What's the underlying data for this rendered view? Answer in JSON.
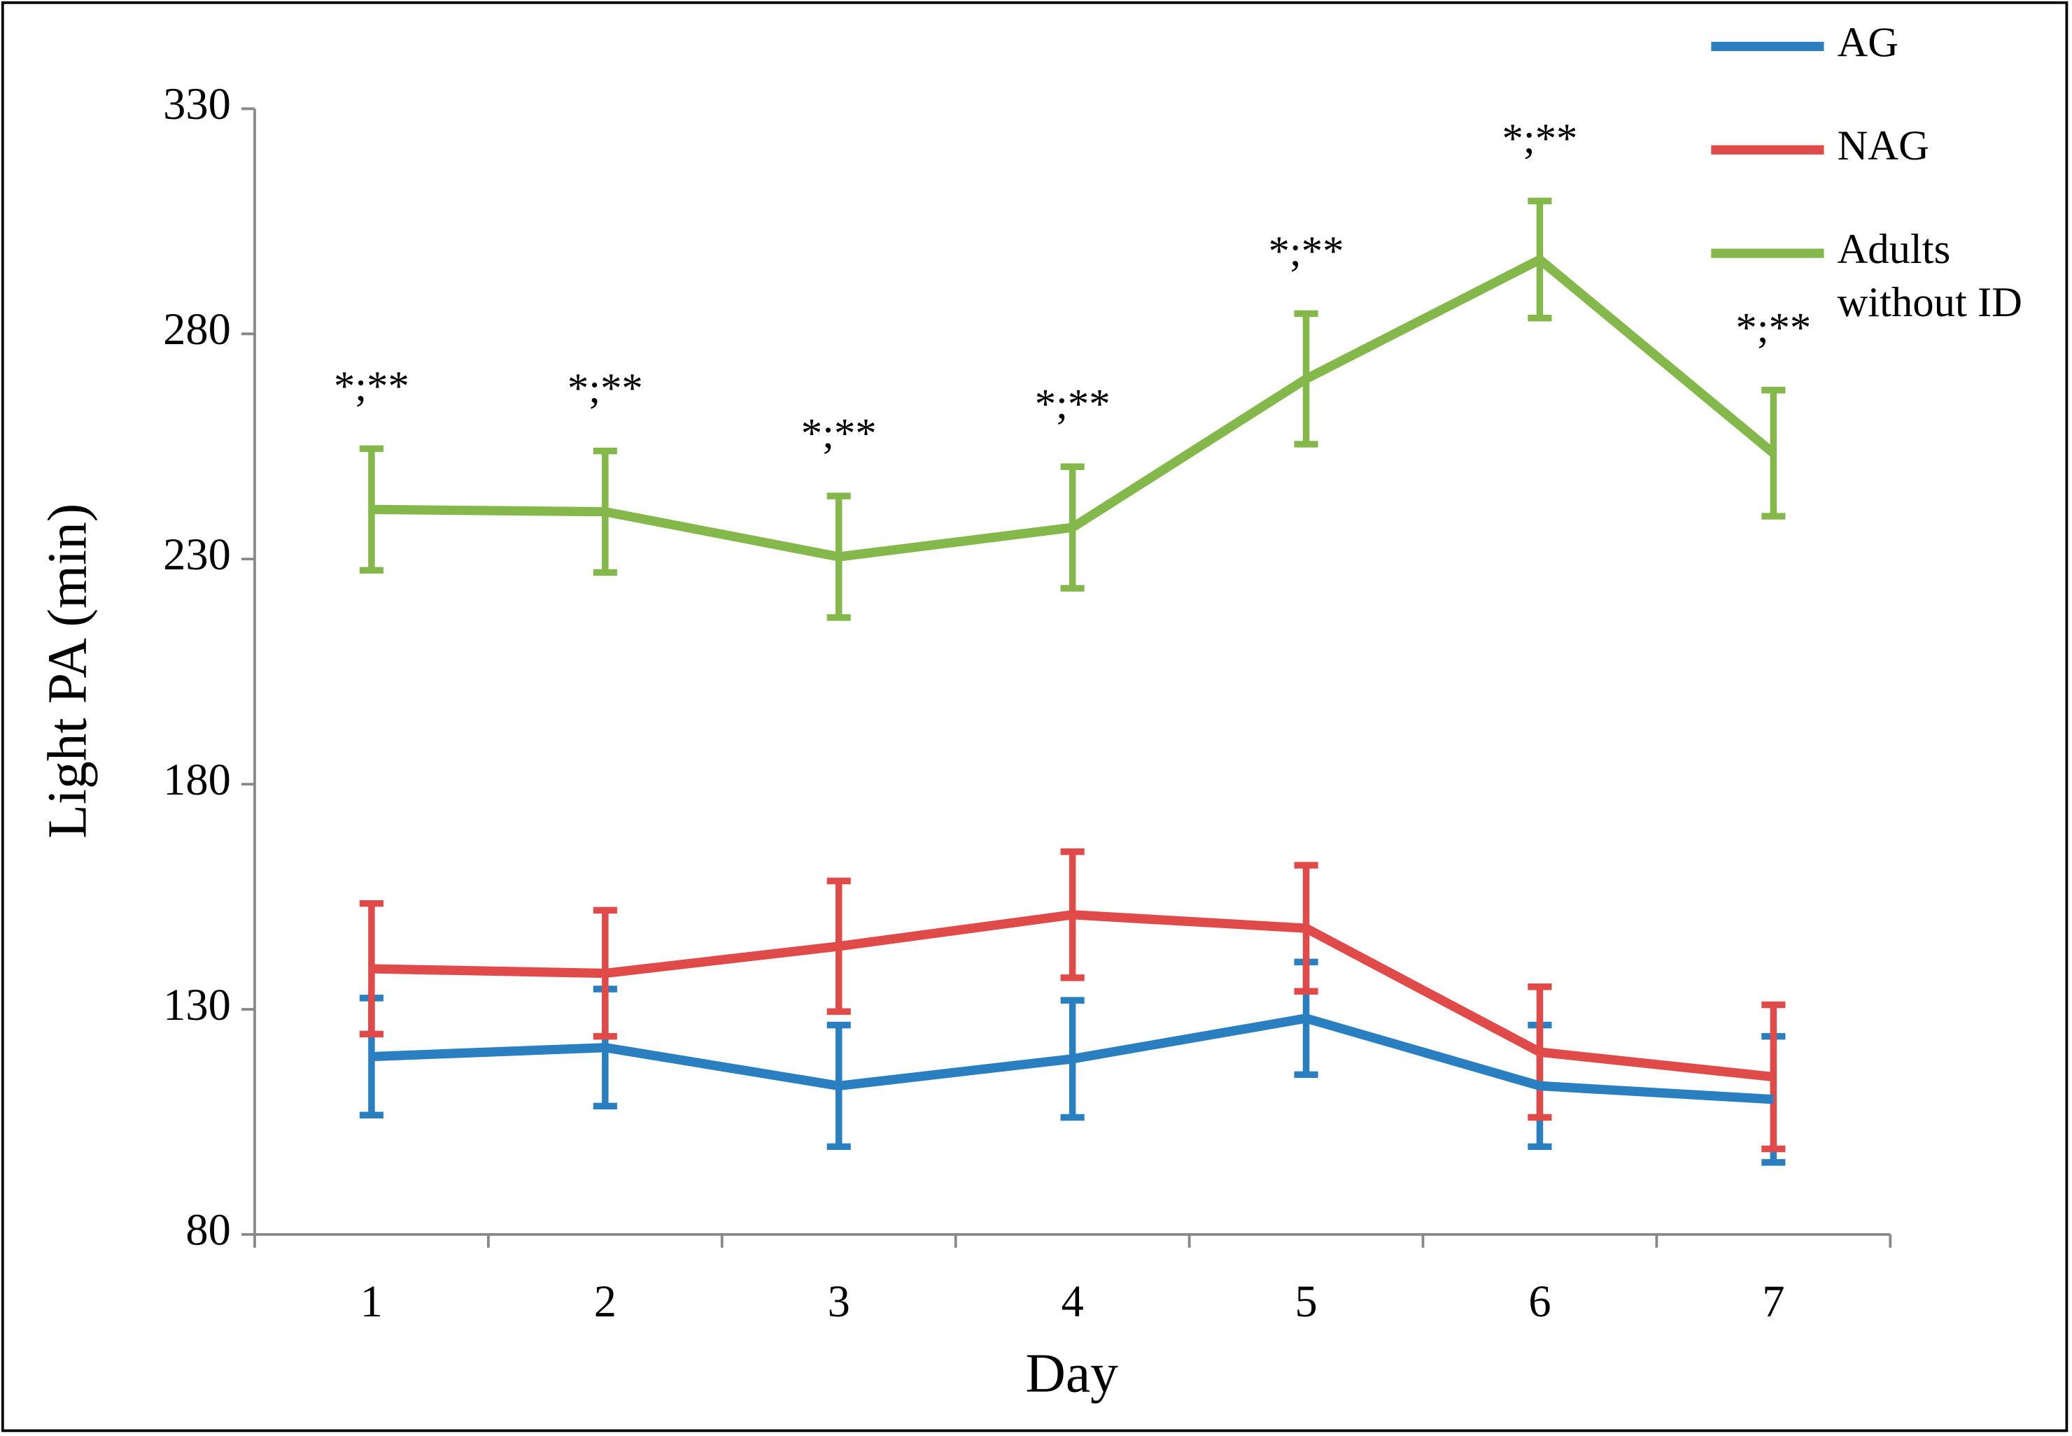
{
  "chart_data": {
    "type": "line",
    "y_label": "Light PA (min)",
    "x_label": "Day",
    "categories": [
      "1",
      "2",
      "3",
      "4",
      "5",
      "6",
      "7"
    ],
    "series": [
      {
        "name": "AG",
        "color": "#2a7fc1",
        "values": [
          119.5,
          121.5,
          113,
          119,
          128,
          113,
          110
        ],
        "errors": [
          13,
          13,
          13.5,
          13,
          12.5,
          13.5,
          14
        ]
      },
      {
        "name": "NAG",
        "color": "#e04a48",
        "values": [
          139,
          138,
          144,
          151,
          148,
          120.5,
          115
        ],
        "errors": [
          14.5,
          14,
          14.5,
          14,
          14,
          14.5,
          16
        ]
      },
      {
        "name": "Adults without ID",
        "color": "#84b84a",
        "values": [
          241,
          240.5,
          230.5,
          237,
          270,
          296.5,
          253.5
        ],
        "errors": [
          13.5,
          13.5,
          13.5,
          13.5,
          14.5,
          13,
          14
        ],
        "annotations": [
          "*;**",
          "*;**",
          "*;**",
          "*;**",
          "*;**",
          "*;**",
          "*;**"
        ]
      }
    ],
    "ylim": [
      80,
      330
    ],
    "yticks": [
      80,
      130,
      180,
      230,
      280,
      330
    ],
    "grid": false,
    "legend": "top-right"
  }
}
